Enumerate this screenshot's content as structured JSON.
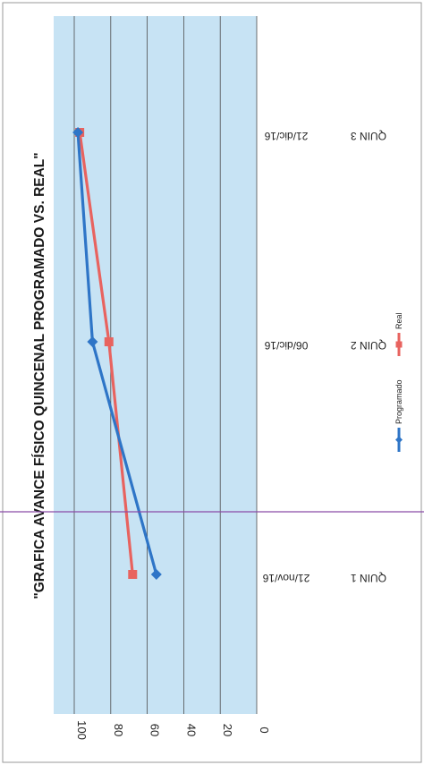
{
  "chart_data": {
    "type": "line",
    "title": "\"GRAFICA AVANCE FÍSICO QUINCENAL PROGRAMADO VS. REAL\"",
    "categories": [
      {
        "quin": "QUIN 1",
        "date": "21/nov/16"
      },
      {
        "quin": "QUIN 2",
        "date": "06/dic/16"
      },
      {
        "quin": "QUIN 3",
        "date": "21/dic/16"
      }
    ],
    "series": [
      {
        "name": "Programado",
        "values": [
          55,
          90,
          98
        ],
        "color": "#2e75c7",
        "marker": "diamond"
      },
      {
        "name": "Real",
        "values": [
          68,
          81,
          97
        ],
        "color": "#e8635f",
        "marker": "square"
      }
    ],
    "yticks": [
      "100",
      "80",
      "60",
      "40",
      "20",
      "0"
    ],
    "ylim": [
      0,
      110
    ],
    "grid": true,
    "legend_position": "right",
    "plot_background": "#c7e3f4",
    "orientation": "rotated"
  }
}
